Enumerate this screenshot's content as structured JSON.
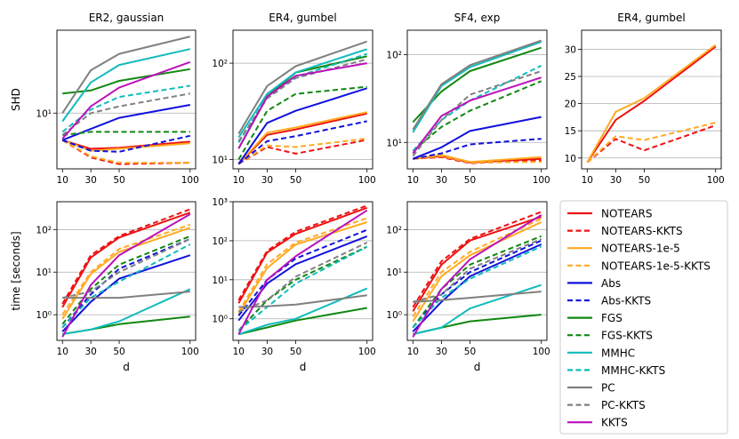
{
  "chart_data": {
    "type": "line",
    "x_ticks": [
      10,
      30,
      50,
      100
    ],
    "xlabel": "d",
    "series_styles": [
      {
        "name": "NOTEARS",
        "color": "#ee1111",
        "dash": false
      },
      {
        "name": "NOTEARS-KKTS",
        "color": "#ee1111",
        "dash": true
      },
      {
        "name": "NOTEARS-1e-5",
        "color": "#ffaa22",
        "dash": false
      },
      {
        "name": "NOTEARS-1e-5-KKTS",
        "color": "#ffaa22",
        "dash": true
      },
      {
        "name": "Abs",
        "color": "#1111dd",
        "dash": false
      },
      {
        "name": "Abs-KKTS",
        "color": "#1111dd",
        "dash": true
      },
      {
        "name": "FGS",
        "color": "#118811",
        "dash": false
      },
      {
        "name": "FGS-KKTS",
        "color": "#118811",
        "dash": true
      },
      {
        "name": "MMHC",
        "color": "#11bbbb",
        "dash": false
      },
      {
        "name": "MMHC-KKTS",
        "color": "#11bbbb",
        "dash": true
      },
      {
        "name": "PC",
        "color": "#808080",
        "dash": false
      },
      {
        "name": "PC-KKTS",
        "color": "#808080",
        "dash": true
      },
      {
        "name": "KKTS",
        "color": "#bb11bb",
        "dash": false
      }
    ],
    "panels": [
      {
        "id": "shd-er2-gaussian",
        "title": "ER2, gaussian",
        "ylabel": "SHD",
        "yscale": "log",
        "ylim": [
          2.2,
          95
        ],
        "yticks": [
          10
        ],
        "yticklabels": [
          "10¹"
        ],
        "series": {
          "NOTEARS": [
            4.8,
            3.8,
            3.9,
            4.6
          ],
          "NOTEARS-KKTS": [
            4.8,
            3.0,
            2.5,
            2.6
          ],
          "NOTEARS-1e-5": [
            4.8,
            3.6,
            3.8,
            4.4
          ],
          "NOTEARS-1e-5-KKTS": [
            4.8,
            3.1,
            2.6,
            2.6
          ],
          "Abs": [
            4.8,
            6.5,
            8.8,
            12.5
          ],
          "Abs-KKTS": [
            4.8,
            3.6,
            3.5,
            5.4
          ],
          "FGS": [
            17.0,
            18.5,
            24.0,
            33.0
          ],
          "FGS-KKTS": [
            5.5,
            6.0,
            6.0,
            6.0
          ],
          "MMHC": [
            8.0,
            23.0,
            37.0,
            57.0
          ],
          "MMHC-KKTS": [
            6.0,
            11.0,
            15.5,
            21.0
          ],
          "PC": [
            10.0,
            32.0,
            50.0,
            80.0
          ],
          "PC-KKTS": [
            5.5,
            10.0,
            12.0,
            17.0
          ],
          "KKTS": [
            5.0,
            12.0,
            20.0,
            40.0
          ]
        }
      },
      {
        "id": "shd-er4-gumbel",
        "title": "ER4, gumbel",
        "ylabel": "",
        "yscale": "log",
        "ylim": [
          8,
          220
        ],
        "yticks": [
          10,
          100
        ],
        "yticklabels": [
          "10¹",
          "10²"
        ],
        "series": {
          "NOTEARS": [
            9.0,
            18.0,
            20.5,
            30.0
          ],
          "NOTEARS-KKTS": [
            9.0,
            13.5,
            11.5,
            16.0
          ],
          "NOTEARS-1e-5": [
            9.0,
            19.0,
            21.5,
            31.0
          ],
          "NOTEARS-1e-5-KKTS": [
            9.0,
            14.0,
            13.5,
            16.5
          ],
          "Abs": [
            9.0,
            24.0,
            32.0,
            55.0
          ],
          "Abs-KKTS": [
            9.0,
            15.5,
            17.5,
            25.0
          ],
          "FGS": [
            13.0,
            45.0,
            80.0,
            118.0
          ],
          "FGS-KKTS": [
            10.0,
            32.0,
            48.0,
            57.0
          ],
          "MMHC": [
            17.0,
            48.0,
            80.0,
            140.0
          ],
          "MMHC-KKTS": [
            15.0,
            45.0,
            72.0,
            125.0
          ],
          "PC": [
            18.5,
            58.0,
            93.0,
            168.0
          ],
          "PC-KKTS": [
            15.5,
            43.0,
            70.0,
            110.0
          ],
          "KKTS": [
            13.0,
            45.0,
            74.0,
            100.0
          ]
        }
      },
      {
        "id": "shd-sf4-exp",
        "title": "SF4, exp",
        "ylabel": "",
        "yscale": "log",
        "ylim": [
          5,
          190
        ],
        "yticks": [
          10,
          100
        ],
        "yticklabels": [
          "10¹",
          "10²"
        ],
        "series": {
          "NOTEARS": [
            6.5,
            7.0,
            5.9,
            6.5
          ],
          "NOTEARS-KKTS": [
            6.5,
            6.8,
            5.8,
            6.2
          ],
          "NOTEARS-1e-5": [
            6.5,
            7.2,
            6.0,
            6.8
          ],
          "NOTEARS-1e-5-KKTS": [
            6.5,
            7.0,
            5.9,
            6.0
          ],
          "Abs": [
            6.5,
            8.8,
            13.5,
            19.5
          ],
          "Abs-KKTS": [
            6.5,
            7.5,
            9.5,
            11.0
          ],
          "FGS": [
            17.0,
            38.0,
            65.0,
            120.0
          ],
          "FGS-KKTS": [
            8.0,
            15.0,
            23.0,
            50.0
          ],
          "MMHC": [
            13.0,
            44.0,
            72.0,
            140.0
          ],
          "MMHC-KKTS": [
            8.0,
            18.0,
            30.0,
            75.0
          ],
          "PC": [
            14.0,
            46.0,
            76.0,
            145.0
          ],
          "PC-KKTS": [
            7.0,
            18.0,
            35.0,
            65.0
          ],
          "KKTS": [
            7.5,
            20.0,
            30.0,
            55.0
          ]
        }
      },
      {
        "id": "shd-er4-gumbel-linear",
        "title": "ER4, gumbel",
        "ylabel": "",
        "yscale": "linear",
        "ylim": [
          8,
          33.5
        ],
        "yticks": [
          10,
          15,
          20,
          25,
          30
        ],
        "yticklabels": [
          "10",
          "15",
          "20",
          "25",
          "30"
        ],
        "series": {
          "NOTEARS": [
            9.2,
            17.0,
            20.5,
            30.5
          ],
          "NOTEARS-KKTS": [
            9.2,
            13.5,
            11.4,
            16.0
          ],
          "NOTEARS-1e-5": [
            9.2,
            18.5,
            21.0,
            30.8
          ],
          "NOTEARS-1e-5-KKTS": [
            9.2,
            14.0,
            13.3,
            16.5
          ]
        }
      },
      {
        "id": "time-er2-gaussian",
        "title": "",
        "ylabel": "time [seconds]",
        "yscale": "log",
        "ylim": [
          0.25,
          450
        ],
        "yticks": [
          1,
          10,
          100
        ],
        "yticklabels": [
          "10⁰",
          "10¹",
          "10²"
        ],
        "series": {
          "NOTEARS": [
            1.5,
            22.0,
            65.0,
            250.0
          ],
          "NOTEARS-KKTS": [
            1.8,
            25.0,
            70.0,
            300.0
          ],
          "NOTEARS-1e-5": [
            0.8,
            9.0,
            30.0,
            110.0
          ],
          "NOTEARS-1e-5-KKTS": [
            1.0,
            10.0,
            35.0,
            130.0
          ],
          "Abs": [
            0.4,
            2.0,
            7.0,
            25.0
          ],
          "Abs-KKTS": [
            0.5,
            3.0,
            12.0,
            60.0
          ],
          "FGS": [
            0.35,
            0.45,
            0.6,
            0.9
          ],
          "FGS-KKTS": [
            0.6,
            4.0,
            15.0,
            70.0
          ],
          "MMHC": [
            0.35,
            0.45,
            0.7,
            4.0
          ],
          "MMHC-KKTS": [
            0.5,
            2.5,
            6.0,
            45.0
          ],
          "PC": [
            2.5,
            2.5,
            2.5,
            3.5
          ],
          "PC-KKTS": [
            2.5,
            3.5,
            10.0,
            60.0
          ],
          "KKTS": [
            0.3,
            5.0,
            25.0,
            230.0
          ]
        }
      },
      {
        "id": "time-er4-gumbel",
        "title": "",
        "ylabel": "",
        "yscale": "log",
        "ylim": [
          0.28,
          1000
        ],
        "yticks": [
          1,
          10,
          100,
          1000
        ],
        "yticklabels": [
          "10⁰",
          "10¹",
          "10²",
          "10³"
        ],
        "series": {
          "NOTEARS": [
            2.5,
            50.0,
            150.0,
            700.0
          ],
          "NOTEARS-KKTS": [
            3.0,
            55.0,
            170.0,
            800.0
          ],
          "NOTEARS-1e-5": [
            1.3,
            20.0,
            80.0,
            300.0
          ],
          "NOTEARS-1e-5-KKTS": [
            1.5,
            25.0,
            90.0,
            380.0
          ],
          "Abs": [
            0.9,
            8.0,
            25.0,
            130.0
          ],
          "Abs-KKTS": [
            1.2,
            10.0,
            35.0,
            190.0
          ],
          "FGS": [
            0.4,
            0.6,
            0.9,
            1.9
          ],
          "FGS-KKTS": [
            0.5,
            3.0,
            10.0,
            70.0
          ],
          "MMHC": [
            0.4,
            0.7,
            1.0,
            6.0
          ],
          "MMHC-KKTS": [
            0.5,
            2.0,
            8.0,
            70.0
          ],
          "PC": [
            2.0,
            2.1,
            2.3,
            4.0
          ],
          "PC-KKTS": [
            1.5,
            3.0,
            12.0,
            90.0
          ],
          "KKTS": [
            0.4,
            10.0,
            40.0,
            600.0
          ]
        }
      },
      {
        "id": "time-sf4-exp",
        "title": "",
        "ylabel": "",
        "yscale": "log",
        "ylim": [
          0.25,
          450
        ],
        "yticks": [
          1,
          10,
          100
        ],
        "yticklabels": [
          "10⁰",
          "10¹",
          "10²"
        ],
        "series": {
          "NOTEARS": [
            1.2,
            15.0,
            55.0,
            200.0
          ],
          "NOTEARS-KKTS": [
            1.5,
            18.0,
            60.0,
            260.0
          ],
          "NOTEARS-1e-5": [
            0.7,
            8.0,
            25.0,
            150.0
          ],
          "NOTEARS-1e-5-KKTS": [
            0.9,
            10.0,
            30.0,
            180.0
          ],
          "Abs": [
            0.4,
            2.0,
            8.0,
            45.0
          ],
          "Abs-KKTS": [
            0.5,
            3.0,
            10.0,
            55.0
          ],
          "FGS": [
            0.35,
            0.5,
            0.7,
            1.0
          ],
          "FGS-KKTS": [
            0.5,
            4.0,
            15.0,
            70.0
          ],
          "MMHC": [
            0.35,
            0.5,
            1.4,
            5.0
          ],
          "MMHC-KKTS": [
            0.5,
            2.5,
            7.0,
            40.0
          ],
          "PC": [
            2.0,
            2.2,
            2.5,
            3.5
          ],
          "PC-KKTS": [
            2.0,
            3.0,
            12.0,
            60.0
          ],
          "KKTS": [
            0.3,
            4.0,
            20.0,
            220.0
          ]
        }
      }
    ]
  }
}
